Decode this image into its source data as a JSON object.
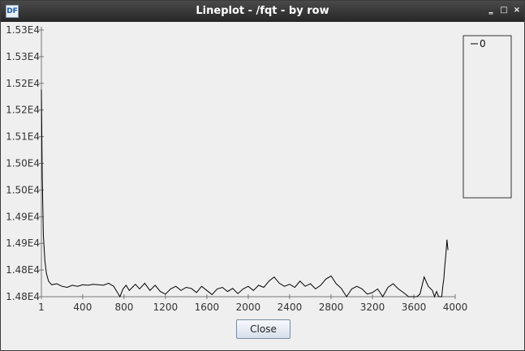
{
  "window": {
    "title": "Lineplot - /fqt - by row",
    "app_icon_label": "DF",
    "minimize_glyph": "‗",
    "maximize_glyph": "□",
    "close_glyph": "×"
  },
  "chart_data": {
    "type": "line",
    "title": "",
    "xlabel": "",
    "ylabel": "",
    "xlim": [
      1,
      4000
    ],
    "ylim": [
      14800,
      15315
    ],
    "x_ticks": [
      "1",
      "400",
      "800",
      "1200",
      "1600",
      "2000",
      "2400",
      "2800",
      "3200",
      "3600",
      "4000"
    ],
    "y_ticks": [
      "1.48E4",
      "1.48E4",
      "1.49E4",
      "1.49E4",
      "1.50E4",
      "1.50E4",
      "1.51E4",
      "1.52E4",
      "1.52E4",
      "1.53E4",
      "1.53E4"
    ],
    "legend": {
      "position": "top-right",
      "entries": [
        "0"
      ]
    },
    "series": [
      {
        "name": "0",
        "color": "#000000",
        "x": [
          1,
          10,
          20,
          35,
          50,
          70,
          100,
          150,
          200,
          250,
          300,
          350,
          400,
          450,
          500,
          550,
          600,
          650,
          700,
          730,
          760,
          790,
          820,
          850,
          880,
          910,
          950,
          1000,
          1050,
          1100,
          1150,
          1200,
          1250,
          1300,
          1350,
          1400,
          1450,
          1500,
          1550,
          1600,
          1650,
          1700,
          1750,
          1800,
          1850,
          1900,
          1950,
          2000,
          2050,
          2100,
          2150,
          2200,
          2250,
          2300,
          2350,
          2400,
          2450,
          2500,
          2550,
          2600,
          2650,
          2700,
          2750,
          2800,
          2850,
          2900,
          2950,
          3000,
          3050,
          3100,
          3150,
          3200,
          3250,
          3300,
          3350,
          3400,
          3450,
          3500,
          3550,
          3600,
          3630,
          3660,
          3700,
          3740,
          3780,
          3800,
          3820,
          3840,
          3860,
          3870,
          3880,
          3890,
          3900,
          3910,
          3920,
          3930
        ],
        "values": [
          15200,
          15030,
          14920,
          14870,
          14845,
          14830,
          14823,
          14825,
          14820,
          14818,
          14822,
          14820,
          14823,
          14822,
          14824,
          14823,
          14822,
          14826,
          14820,
          14810,
          14800,
          14815,
          14822,
          14812,
          14818,
          14824,
          14815,
          14826,
          14812,
          14822,
          14810,
          14805,
          14815,
          14820,
          14812,
          14818,
          14816,
          14808,
          14820,
          14812,
          14804,
          14815,
          14818,
          14810,
          14816,
          14806,
          14815,
          14820,
          14812,
          14822,
          14818,
          14830,
          14838,
          14826,
          14820,
          14824,
          14818,
          14830,
          14820,
          14825,
          14815,
          14822,
          14834,
          14840,
          14825,
          14816,
          14800,
          14815,
          14820,
          14815,
          14805,
          14808,
          14815,
          14800,
          14818,
          14825,
          14815,
          14808,
          14800,
          14795,
          14780,
          14805,
          14838,
          14820,
          14812,
          14795,
          14810,
          14800,
          14785,
          14790,
          14820,
          14835,
          14860,
          14882,
          14910,
          14890
        ]
      }
    ]
  },
  "buttons": {
    "close_label": "Close"
  }
}
